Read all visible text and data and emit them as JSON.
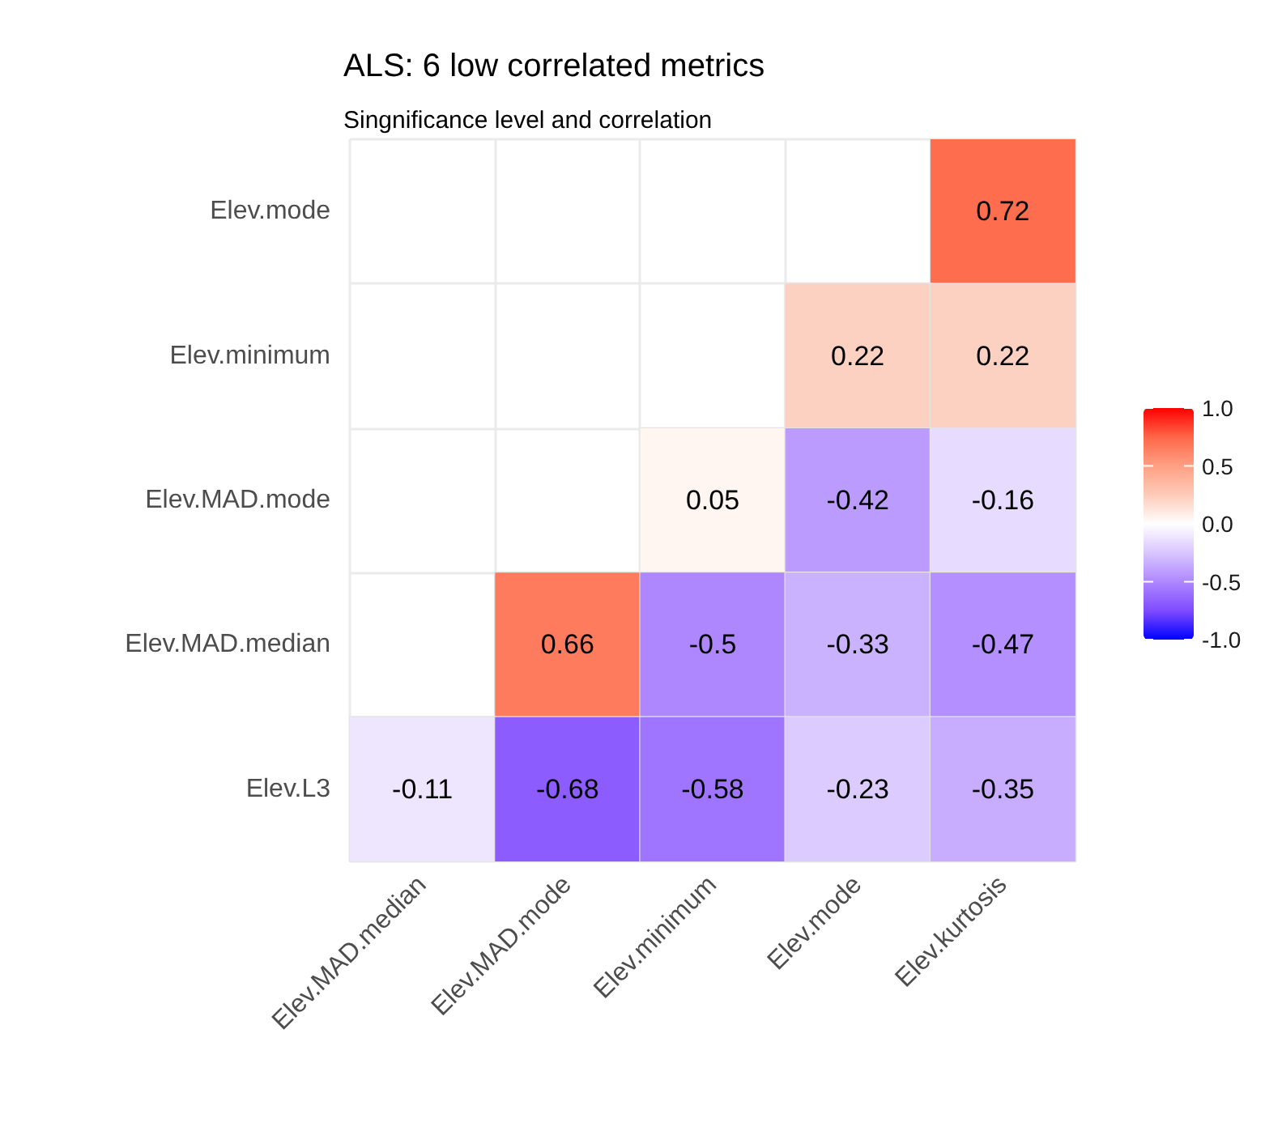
{
  "chart_data": {
    "type": "heatmap",
    "title": "ALS: 6 low correlated metrics",
    "subtitle": "Singnificance level and correlation",
    "categories": [
      "Elev.MAD.median",
      "Elev.MAD.mode",
      "Elev.minimum",
      "Elev.mode",
      "Elev.kurtosis"
    ],
    "y_categories": [
      "Elev.mode",
      "Elev.minimum",
      "Elev.MAD.mode",
      "Elev.MAD.median",
      "Elev.L3"
    ],
    "cells": [
      [
        null,
        null,
        null,
        null,
        0.72
      ],
      [
        null,
        null,
        null,
        0.22,
        0.22
      ],
      [
        null,
        null,
        0.05,
        -0.42,
        -0.16
      ],
      [
        null,
        0.66,
        -0.5,
        -0.33,
        -0.47
      ],
      [
        -0.11,
        -0.68,
        -0.58,
        -0.23,
        -0.35
      ]
    ],
    "clim": [
      -1,
      1
    ],
    "cticks": [
      {
        "value": 1,
        "label": "1.0"
      },
      {
        "value": 0.5,
        "label": "0.5"
      },
      {
        "value": 0,
        "label": "0.0"
      },
      {
        "value": -0.5,
        "label": "-0.5"
      },
      {
        "value": -1,
        "label": "-1.0"
      }
    ],
    "colors": [
      "#0000ff",
      "#7f4bff",
      "#ae87ff",
      "#d9c6ff",
      "#ffffff",
      "#fdcbb8",
      "#ffa083",
      "#ff6648",
      "#ff0000"
    ],
    "data_labels": true,
    "grid": true
  }
}
